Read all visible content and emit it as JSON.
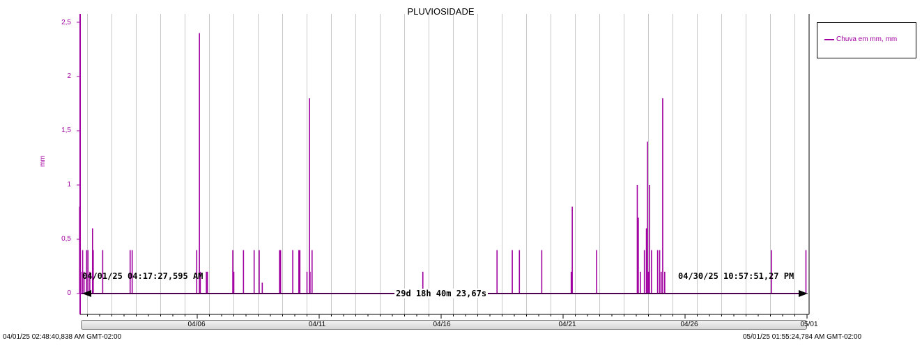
{
  "chart_data": {
    "type": "bar",
    "title": "PLUVIOSIDADE",
    "ylabel": "mm",
    "xlabel": "",
    "ylim": [
      -0.2,
      2.6
    ],
    "x_range": [
      "04/01/25 02:48:40,838 AM",
      "05/01/25 01:55:24,784 AM"
    ],
    "yticks": [
      "2,5",
      "2",
      "1,5",
      "1",
      "0,5",
      "0"
    ],
    "xticks": [
      "04/06",
      "04/11",
      "04/16",
      "04/21",
      "04/26",
      "05/01"
    ],
    "legend": {
      "position": "top-right",
      "label": "Chuva em mm, mm"
    },
    "series_color": "#a000a0",
    "grid": true,
    "series": [
      {
        "name": "Chuva em mm, mm",
        "points": [
          [
            "04/01 04:17",
            0.8
          ],
          [
            "04/01 05:30",
            0.2
          ],
          [
            "04/01 07:15",
            0.4
          ],
          [
            "04/01 08:40",
            0.2
          ],
          [
            "04/01 11:10",
            0.4
          ],
          [
            "04/01 12:30",
            0.4
          ],
          [
            "04/01 14:20",
            0.2
          ],
          [
            "04/01 17:00",
            0.6
          ],
          [
            "04/01 17:40",
            0.4
          ],
          [
            "04/02 03:00",
            0.4
          ],
          [
            "04/03 06:00",
            0.4
          ],
          [
            "04/03 08:00",
            0.4
          ],
          [
            "04/05 23:30",
            0.4
          ],
          [
            "04/06 02:10",
            2.4
          ],
          [
            "04/06 03:00",
            0.2
          ],
          [
            "04/06 09:00",
            0.2
          ],
          [
            "04/06 10:00",
            0.2
          ],
          [
            "04/07 11:00",
            0.4
          ],
          [
            "04/07 12:00",
            0.2
          ],
          [
            "04/07 21:30",
            0.4
          ],
          [
            "04/08 08:00",
            0.4
          ],
          [
            "04/08 13:00",
            0.4
          ],
          [
            "04/08 16:00",
            0.1
          ],
          [
            "04/09 09:00",
            0.4
          ],
          [
            "04/09 10:00",
            0.4
          ],
          [
            "04/09 22:00",
            0.4
          ],
          [
            "04/10 04:00",
            0.4
          ],
          [
            "04/10 05:00",
            0.4
          ],
          [
            "04/10 12:00",
            0.2
          ],
          [
            "04/10 14:30",
            1.8
          ],
          [
            "04/10 15:00",
            0.2
          ],
          [
            "04/10 17:00",
            0.4
          ],
          [
            "04/15 06:00",
            0.2
          ],
          [
            "04/18 07:00",
            0.4
          ],
          [
            "04/18 22:00",
            0.4
          ],
          [
            "04/19 05:00",
            0.4
          ],
          [
            "04/20 03:00",
            0.4
          ],
          [
            "04/21 08:00",
            0.2
          ],
          [
            "04/21 09:00",
            0.8
          ],
          [
            "04/22 09:00",
            0.4
          ],
          [
            "04/24 01:00",
            1.0
          ],
          [
            "04/24 02:00",
            0.7
          ],
          [
            "04/24 04:00",
            0.2
          ],
          [
            "04/24 08:00",
            0.4
          ],
          [
            "04/24 10:00",
            0.6
          ],
          [
            "04/24 11:00",
            1.4
          ],
          [
            "04/24 12:00",
            0.2
          ],
          [
            "04/24 13:00",
            1.0
          ],
          [
            "04/24 15:00",
            0.4
          ],
          [
            "04/24 21:00",
            0.4
          ],
          [
            "04/24 23:00",
            0.4
          ],
          [
            "04/25 00:30",
            0.2
          ],
          [
            "04/25 02:00",
            1.8
          ],
          [
            "04/25 04:00",
            0.2
          ],
          [
            "04/29 13:00",
            0.4
          ],
          [
            "04/30 22:57",
            0.4
          ]
        ]
      }
    ]
  },
  "cursors": {
    "left_stamp": "04/01/25 04:17:27,595 AM",
    "right_stamp": "04/30/25 10:57:51,27 PM",
    "span": "29d 18h 40m 23,67s"
  },
  "axis_bounds": {
    "left": "04/01/25 02:48:40,838 AM GMT-02:00",
    "right": "05/01/25 01:55:24,784 AM GMT-02:00"
  }
}
